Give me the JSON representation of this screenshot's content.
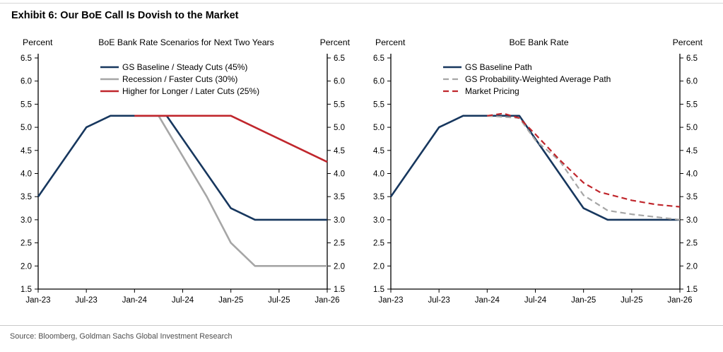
{
  "exhibit": {
    "title": "Exhibit 6: Our BoE Call Is Dovish to the Market",
    "source": "Source: Bloomberg, Goldman Sachs Global Investment Research"
  },
  "colors": {
    "baseline_navy": "#17375e",
    "scenario_gray": "#a6a6a6",
    "accent_red": "#c0262c",
    "axis_black": "#000000"
  },
  "chart_data": [
    {
      "type": "line",
      "title": "BoE Bank Rate Scenarios for Next Two Years",
      "ylabel_left": "Percent",
      "ylabel_right": "Percent",
      "ylim": [
        1.5,
        6.5
      ],
      "ytick_step": 0.5,
      "xlim": [
        0,
        36
      ],
      "x_unit": "months since Jan-23",
      "grid": false,
      "legend_position": "top-inside",
      "x_ticks": [
        {
          "pos": 0,
          "label": "Jan-23"
        },
        {
          "pos": 6,
          "label": "Jul-23"
        },
        {
          "pos": 12,
          "label": "Jan-24"
        },
        {
          "pos": 18,
          "label": "Jul-24"
        },
        {
          "pos": 24,
          "label": "Jan-25"
        },
        {
          "pos": 30,
          "label": "Jul-25"
        },
        {
          "pos": 36,
          "label": "Jan-26"
        }
      ],
      "series": [
        {
          "name": "GS Baseline / Steady Cuts (45%)",
          "color": "#17375e",
          "style": "solid",
          "x": [
            0,
            6,
            9,
            16,
            24,
            27,
            36
          ],
          "y": [
            3.5,
            5.0,
            5.25,
            5.25,
            3.25,
            3.0,
            3.0
          ]
        },
        {
          "name": "Recession / Faster Cuts (30%)",
          "color": "#a6a6a6",
          "style": "solid",
          "x": [
            15,
            21,
            24,
            27,
            36
          ],
          "y": [
            5.25,
            3.5,
            2.5,
            2.0,
            2.0
          ]
        },
        {
          "name": "Higher for Longer / Later Cuts (25%)",
          "color": "#c0262c",
          "style": "solid",
          "x": [
            12,
            24,
            36
          ],
          "y": [
            5.25,
            5.25,
            4.25
          ]
        }
      ]
    },
    {
      "type": "line",
      "title": "BoE Bank Rate",
      "ylabel_left": "Percent",
      "ylabel_right": "Percent",
      "ylim": [
        1.5,
        6.5
      ],
      "ytick_step": 0.5,
      "xlim": [
        0,
        36
      ],
      "x_unit": "months since Jan-23",
      "grid": false,
      "legend_position": "top-inside",
      "x_ticks": [
        {
          "pos": 0,
          "label": "Jan-23"
        },
        {
          "pos": 6,
          "label": "Jul-23"
        },
        {
          "pos": 12,
          "label": "Jan-24"
        },
        {
          "pos": 18,
          "label": "Jul-24"
        },
        {
          "pos": 24,
          "label": "Jan-25"
        },
        {
          "pos": 30,
          "label": "Jul-25"
        },
        {
          "pos": 36,
          "label": "Jan-26"
        }
      ],
      "series": [
        {
          "name": "GS Baseline Path",
          "color": "#17375e",
          "style": "solid",
          "x": [
            0,
            6,
            9,
            16,
            24,
            27,
            36
          ],
          "y": [
            3.5,
            5.0,
            5.25,
            5.25,
            3.25,
            3.0,
            3.0
          ]
        },
        {
          "name": "GS Probability-Weighted Average Path",
          "color": "#a6a6a6",
          "style": "dashed",
          "x": [
            12,
            16,
            18,
            21,
            24,
            27,
            30,
            33,
            36
          ],
          "y": [
            5.25,
            5.2,
            4.72,
            4.28,
            3.53,
            3.2,
            3.12,
            3.06,
            3.0
          ]
        },
        {
          "name": "Market Pricing",
          "color": "#c0262c",
          "style": "dashed",
          "x": [
            12,
            14,
            16,
            18,
            21,
            24,
            26,
            30,
            33,
            36
          ],
          "y": [
            5.25,
            5.3,
            5.2,
            4.85,
            4.3,
            3.8,
            3.6,
            3.42,
            3.33,
            3.28
          ]
        }
      ]
    }
  ]
}
